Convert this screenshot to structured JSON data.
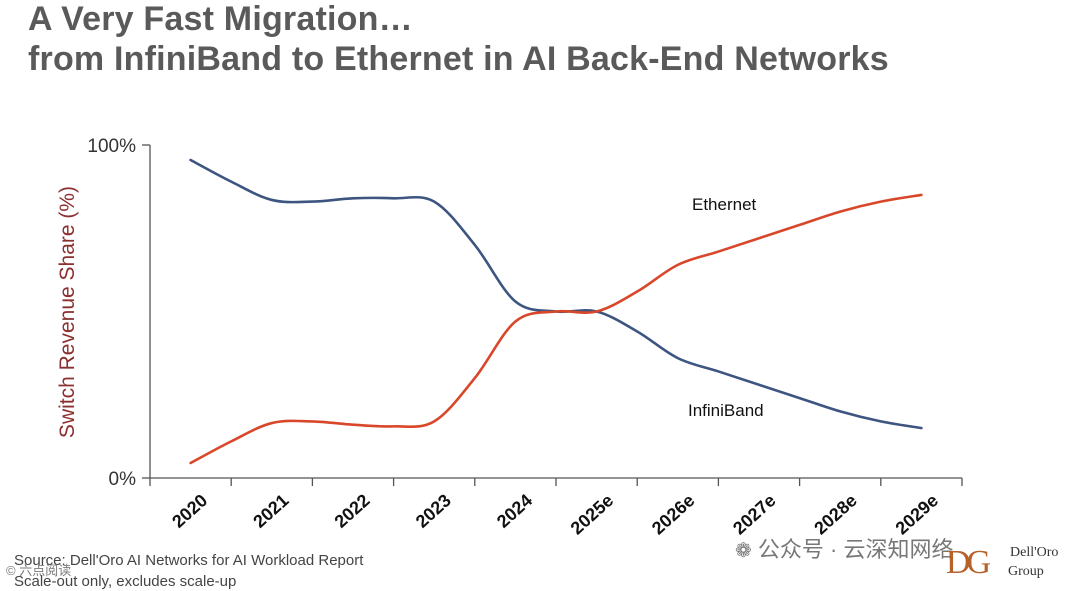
{
  "header": {
    "title_line1": "A Very Fast Migration…",
    "title_line2": "from InfiniBand to Ethernet in AI Back-End Networks"
  },
  "chart_data": {
    "type": "line",
    "ylabel": "Switch Revenue Share (%)",
    "xlabel": "",
    "ylim": [
      0,
      100
    ],
    "yticks": [
      "0%",
      "100%"
    ],
    "categories": [
      "2020",
      "2021",
      "2022",
      "2023",
      "2024",
      "2025e",
      "2026e",
      "2027e",
      "2028e",
      "2029e"
    ],
    "x": [
      2020,
      2020.5,
      2021,
      2021.5,
      2022,
      2022.5,
      2023,
      2023.5,
      2024,
      2024.5,
      2025,
      2025.5,
      2026,
      2026.5,
      2027,
      2027.5,
      2028,
      2028.5,
      2029
    ],
    "series": [
      {
        "name": "Ethernet",
        "color": "#d9472b",
        "values": [
          4.5,
          11,
          16.5,
          17,
          16,
          15.5,
          17,
          30,
          47,
          50,
          50,
          56,
          64,
          68,
          72,
          76,
          80,
          83,
          85
        ]
      },
      {
        "name": "InfiniBand",
        "color": "#3d5580",
        "values": [
          95.5,
          89,
          83.5,
          83,
          84,
          84,
          83,
          70,
          53,
          50,
          50,
          44,
          36,
          32,
          28,
          24,
          20,
          17,
          15
        ]
      }
    ],
    "labels": {
      "ethernet": "Ethernet",
      "infiniband": "InfiniBand"
    }
  },
  "footer": {
    "source": "Source: Dell'Oro AI Networks for AI Workload Report",
    "note": "Scale-out only, excludes scale-up"
  },
  "watermark": {
    "wechat": "公众号 · 云深知网络",
    "small": "© 六点阅读"
  },
  "logo": {
    "mark": "DG",
    "line1": "Dell'Oro",
    "line2": "Group"
  }
}
